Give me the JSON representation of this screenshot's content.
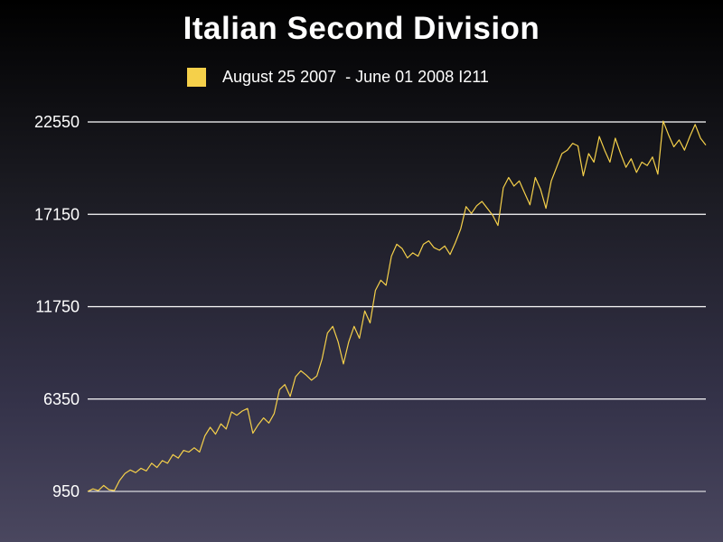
{
  "chart_data": {
    "type": "line",
    "title": "Italian Second Division",
    "xlabel": "",
    "ylabel": "",
    "ylim": [
      950,
      22550
    ],
    "yticks": [
      950,
      6350,
      11750,
      17150,
      22550
    ],
    "grid": true,
    "legend_position": "top",
    "x_range": [
      "2007-08-25",
      "2008-06-01"
    ],
    "series": [
      {
        "name": "August 25 2007  - June 01 2008 I211",
        "color": "#f5d04a",
        "values": [
          950,
          1100,
          1000,
          1300,
          1050,
          1000,
          1600,
          2000,
          2200,
          2050,
          2300,
          2150,
          2600,
          2350,
          2750,
          2600,
          3100,
          2900,
          3350,
          3250,
          3500,
          3250,
          4200,
          4700,
          4300,
          4900,
          4600,
          5600,
          5400,
          5650,
          5800,
          4350,
          4850,
          5250,
          4950,
          5500,
          6900,
          7200,
          6500,
          7650,
          8000,
          7750,
          7450,
          7700,
          8700,
          10200,
          10600,
          9700,
          8400,
          9700,
          10600,
          9900,
          11500,
          10800,
          12700,
          13300,
          13000,
          14700,
          15400,
          15150,
          14600,
          14900,
          14700,
          15400,
          15600,
          15200,
          15050,
          15300,
          14800,
          15500,
          16300,
          17600,
          17200,
          17650,
          17900,
          17500,
          17100,
          16500,
          18700,
          19300,
          18800,
          19100,
          18400,
          17700,
          19300,
          18600,
          17500,
          19100,
          19900,
          20700,
          20900,
          21300,
          21150,
          19400,
          20700,
          20200,
          21700,
          20900,
          20200,
          21600,
          20700,
          19900,
          20400,
          19600,
          20200,
          20000,
          20500,
          19500,
          22600,
          21800,
          21100,
          21500,
          20900,
          21700,
          22400,
          21600,
          21200
        ]
      }
    ]
  }
}
